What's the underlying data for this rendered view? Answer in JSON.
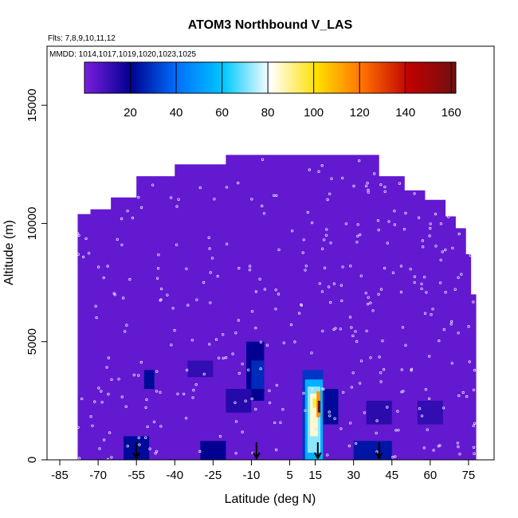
{
  "chart_data": {
    "type": "heatmap",
    "title": "ATOM3 Northbound V_LAS",
    "annotations": {
      "flights": "Flts: 7,8,9,10,11,12",
      "dates": "MMDD: 1014,1017,1019,1020,1023,1025"
    },
    "xlabel": "Latitude (deg N)",
    "ylabel": "Altitude (m)",
    "xlim": [
      -90,
      85
    ],
    "ylim": [
      0,
      17500
    ],
    "xticks": [
      -85,
      -70,
      -55,
      -40,
      -25,
      -10,
      5,
      15,
      30,
      45,
      60,
      75
    ],
    "yticks": [
      0,
      5000,
      10000,
      15000
    ],
    "colorbar": {
      "range": [
        0,
        162
      ],
      "ticks": [
        20,
        40,
        60,
        80,
        100,
        120,
        140,
        160
      ],
      "colors": [
        "#7a1fe0",
        "#000090",
        "#0070ff",
        "#00c8ff",
        "#ffffff",
        "#ffe000",
        "#ff7000",
        "#c00000",
        "#701010"
      ]
    },
    "background_value": 4,
    "coverage_envelope": {
      "x": [
        -78,
        -73,
        -65,
        -55,
        -40,
        -20,
        20,
        40,
        50,
        58,
        66,
        70,
        74,
        76,
        78
      ],
      "top_altitude": [
        10400,
        10600,
        11100,
        12000,
        12500,
        12900,
        12900,
        12000,
        11400,
        11000,
        10300,
        9800,
        8700,
        7000,
        6200
      ]
    },
    "cells": [
      {
        "x": [
          10,
          18
        ],
        "y": [
          0,
          3800
        ],
        "value": 30
      },
      {
        "x": [
          11,
          18
        ],
        "y": [
          0,
          3400
        ],
        "value": 55
      },
      {
        "x": [
          12,
          17
        ],
        "y": [
          300,
          3100
        ],
        "value": 72
      },
      {
        "x": [
          13,
          16
        ],
        "y": [
          1000,
          2800
        ],
        "value": 85
      },
      {
        "x": [
          14,
          16.5
        ],
        "y": [
          2200,
          2600
        ],
        "value": 95
      },
      {
        "x": [
          15.5,
          17
        ],
        "y": [
          1800,
          2900
        ],
        "value": 115
      },
      {
        "x": [
          16,
          17
        ],
        "y": [
          2000,
          2500
        ],
        "value": 160
      },
      {
        "x": [
          -12,
          -5
        ],
        "y": [
          2500,
          5000
        ],
        "value": 20
      },
      {
        "x": [
          -10,
          -5
        ],
        "y": [
          3000,
          4200
        ],
        "value": 28
      },
      {
        "x": [
          18,
          24
        ],
        "y": [
          1500,
          3000
        ],
        "value": 22
      },
      {
        "x": [
          -60,
          -50
        ],
        "y": [
          0,
          1000
        ],
        "value": 22
      },
      {
        "x": [
          -30,
          -20
        ],
        "y": [
          0,
          800
        ],
        "value": 20
      },
      {
        "x": [
          30,
          45
        ],
        "y": [
          0,
          800
        ],
        "value": 24
      },
      {
        "x": [
          -52,
          -48
        ],
        "y": [
          3000,
          3800
        ],
        "value": 22
      },
      {
        "x": [
          -35,
          -25
        ],
        "y": [
          3500,
          4200
        ],
        "value": 12
      },
      {
        "x": [
          55,
          65
        ],
        "y": [
          1500,
          2500
        ],
        "value": 12
      },
      {
        "x": [
          -20,
          -10
        ],
        "y": [
          2000,
          3000
        ],
        "value": 14
      },
      {
        "x": [
          35,
          45
        ],
        "y": [
          1500,
          2500
        ],
        "value": 13
      }
    ],
    "arrow_latitudes": [
      -55,
      -8,
      16,
      40
    ]
  }
}
